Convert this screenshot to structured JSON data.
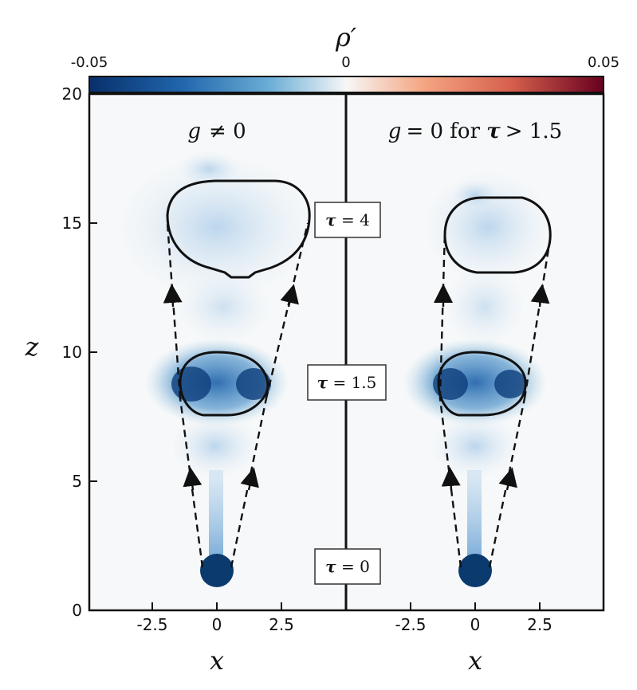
{
  "colorbar": {
    "label": "ρ′",
    "min_label": "-0.05",
    "mid_label": "0",
    "max_label": "0.05",
    "range": [
      -0.05,
      0.05
    ],
    "colors": [
      "#08306b",
      "#2166ac",
      "#6baed6",
      "#f7f7f7",
      "#f4a582",
      "#d6604d",
      "#67001f"
    ]
  },
  "axes": {
    "xlabel": "x",
    "ylabel": "z",
    "y_ticks": [
      "0",
      "5",
      "10",
      "15",
      "20"
    ],
    "x_ticks": [
      "-2.5",
      "0",
      "2.5"
    ],
    "ylim": [
      0,
      20
    ]
  },
  "panels": [
    {
      "title_g": "g",
      "title_rest": "≠ 0"
    },
    {
      "title_g": "g",
      "title_rest": "= 0 for ",
      "title_tau": "τ",
      "title_end": "> 1.5"
    }
  ],
  "tau_labels": [
    {
      "sym": "τ",
      "text": " = 4"
    },
    {
      "sym": "τ",
      "text": " = 1.5"
    },
    {
      "sym": "τ",
      "text": " = 0"
    }
  ]
}
